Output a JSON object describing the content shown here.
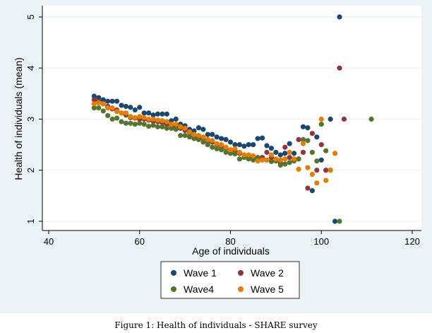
{
  "chart_data": {
    "type": "scatter",
    "xlabel": "Age of individuals",
    "ylabel": "Health of individuals (mean)",
    "xlim": [
      40,
      120
    ],
    "ylim": [
      1,
      5
    ],
    "xticks": [
      40,
      60,
      80,
      100,
      120
    ],
    "yticks": [
      1,
      2,
      3,
      4,
      5
    ],
    "grid": true,
    "legend_position": "bottom",
    "series": [
      {
        "name": "Wave 1",
        "color": "#1a476f",
        "x": [
          50,
          51,
          52,
          53,
          54,
          55,
          56,
          57,
          58,
          59,
          60,
          61,
          62,
          63,
          64,
          65,
          66,
          67,
          68,
          69,
          70,
          71,
          72,
          73,
          74,
          75,
          76,
          77,
          78,
          79,
          80,
          81,
          82,
          83,
          84,
          85,
          86,
          87,
          88,
          89,
          90,
          91,
          92,
          93,
          94,
          95,
          96,
          97,
          98,
          99,
          100,
          101,
          102,
          103,
          104
        ],
        "y": [
          3.45,
          3.42,
          3.38,
          3.35,
          3.35,
          3.35,
          3.27,
          3.25,
          3.23,
          3.18,
          3.23,
          3.12,
          3.12,
          3.08,
          3.1,
          3.1,
          3.1,
          2.97,
          3.0,
          2.9,
          2.87,
          2.8,
          2.77,
          2.83,
          2.8,
          2.7,
          2.7,
          2.65,
          2.62,
          2.6,
          2.55,
          2.5,
          2.5,
          2.47,
          2.5,
          2.5,
          2.62,
          2.63,
          2.48,
          2.43,
          2.35,
          2.3,
          2.33,
          2.52,
          2.33,
          2.22,
          2.85,
          2.83,
          1.6,
          2.65,
          2.2,
          2.0,
          3.0,
          1.0,
          5.0
        ]
      },
      {
        "name": "Wave 2",
        "color": "#90353b",
        "x": [
          50,
          51,
          52,
          53,
          54,
          55,
          56,
          57,
          58,
          59,
          60,
          61,
          62,
          63,
          64,
          65,
          66,
          67,
          68,
          69,
          70,
          71,
          72,
          73,
          74,
          75,
          76,
          77,
          78,
          79,
          80,
          81,
          82,
          83,
          84,
          85,
          86,
          87,
          88,
          89,
          90,
          91,
          92,
          93,
          94,
          95,
          96,
          97,
          98,
          99,
          100,
          101,
          102,
          104,
          105
        ],
        "y": [
          3.38,
          3.35,
          3.3,
          3.25,
          3.2,
          3.18,
          3.12,
          3.08,
          3.03,
          3.02,
          3.0,
          3.0,
          2.98,
          2.96,
          2.95,
          2.93,
          2.9,
          2.88,
          2.85,
          2.82,
          2.78,
          2.73,
          2.68,
          2.65,
          2.62,
          2.57,
          2.55,
          2.5,
          2.47,
          2.43,
          2.4,
          2.38,
          2.33,
          2.3,
          2.28,
          2.25,
          2.22,
          2.25,
          2.35,
          2.25,
          2.2,
          2.15,
          2.45,
          2.25,
          2.2,
          2.6,
          2.35,
          1.65,
          2.72,
          2.0,
          2.5,
          2.0,
          2.0,
          4.0,
          3.0
        ]
      },
      {
        "name": "Wave4",
        "color": "#55752f",
        "x": [
          50,
          51,
          52,
          53,
          54,
          55,
          56,
          57,
          58,
          59,
          60,
          61,
          62,
          63,
          64,
          65,
          66,
          67,
          68,
          69,
          70,
          71,
          72,
          73,
          74,
          75,
          76,
          77,
          78,
          79,
          80,
          81,
          82,
          83,
          84,
          85,
          86,
          87,
          88,
          89,
          90,
          91,
          92,
          93,
          94,
          95,
          96,
          97,
          98,
          99,
          100,
          101,
          104,
          111
        ],
        "y": [
          3.22,
          3.22,
          3.16,
          3.07,
          3.0,
          3.02,
          2.95,
          2.92,
          2.92,
          2.9,
          2.92,
          2.9,
          2.86,
          2.88,
          2.85,
          2.85,
          2.82,
          2.82,
          2.8,
          2.68,
          2.68,
          2.65,
          2.62,
          2.6,
          2.55,
          2.5,
          2.45,
          2.42,
          2.4,
          2.35,
          2.33,
          2.32,
          2.22,
          2.25,
          2.22,
          2.2,
          2.25,
          2.2,
          2.2,
          2.17,
          2.18,
          2.1,
          2.12,
          2.15,
          2.18,
          2.22,
          2.6,
          2.58,
          2.35,
          2.18,
          2.9,
          2.38,
          1.0,
          3.0
        ]
      },
      {
        "name": "Wave 5",
        "color": "#e37e00",
        "x": [
          50,
          51,
          52,
          53,
          54,
          55,
          56,
          57,
          58,
          59,
          60,
          61,
          62,
          63,
          64,
          65,
          66,
          67,
          68,
          69,
          70,
          71,
          72,
          73,
          74,
          75,
          76,
          77,
          78,
          79,
          80,
          81,
          82,
          83,
          84,
          85,
          86,
          87,
          88,
          89,
          90,
          91,
          92,
          93,
          94,
          95,
          96,
          97,
          98,
          99,
          100,
          101,
          102,
          103
        ],
        "y": [
          3.3,
          3.32,
          3.3,
          3.22,
          3.22,
          3.15,
          3.12,
          3.12,
          3.05,
          3.03,
          3.05,
          3.03,
          3.0,
          3.0,
          2.98,
          2.97,
          2.95,
          2.9,
          2.9,
          2.85,
          2.82,
          2.75,
          2.7,
          2.68,
          2.65,
          2.6,
          2.58,
          2.52,
          2.5,
          2.45,
          2.4,
          2.42,
          2.35,
          2.3,
          2.3,
          2.28,
          2.18,
          2.2,
          2.2,
          2.3,
          2.22,
          2.2,
          2.22,
          2.35,
          2.22,
          2.02,
          2.52,
          2.05,
          1.92,
          1.75,
          3.0,
          1.8,
          2.0,
          2.33
        ]
      }
    ]
  },
  "caption": "Figure 1: Health of individuals - SHARE survey"
}
